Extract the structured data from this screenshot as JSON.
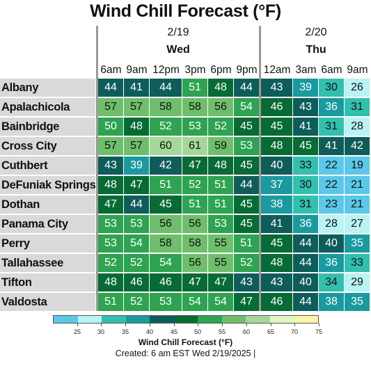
{
  "chart_data": {
    "type": "heatmap",
    "title": "Wind Chill Forecast (°F)",
    "dates": [
      {
        "date": "2/19",
        "day": "Wed",
        "columns": 6
      },
      {
        "date": "2/20",
        "day": "Thu",
        "columns": 4
      }
    ],
    "time_labels": [
      "6am",
      "9am",
      "12pm",
      "3pm",
      "6pm",
      "9pm",
      "12am",
      "3am",
      "6am",
      "9am"
    ],
    "rows": [
      {
        "city": "Albany",
        "values": [
          44,
          41,
          44,
          51,
          48,
          44,
          43,
          39,
          30,
          26
        ]
      },
      {
        "city": "Apalachicola",
        "values": [
          57,
          57,
          58,
          58,
          56,
          54,
          46,
          43,
          36,
          31
        ]
      },
      {
        "city": "Bainbridge",
        "values": [
          50,
          48,
          52,
          53,
          52,
          45,
          45,
          41,
          31,
          28
        ]
      },
      {
        "city": "Cross City",
        "values": [
          57,
          57,
          60,
          61,
          59,
          53,
          48,
          45,
          41,
          42
        ]
      },
      {
        "city": "Cuthbert",
        "values": [
          43,
          39,
          42,
          47,
          48,
          45,
          40,
          33,
          22,
          19
        ]
      },
      {
        "city": "DeFuniak Springs",
        "values": [
          48,
          47,
          51,
          52,
          51,
          44,
          37,
          30,
          22,
          21
        ]
      },
      {
        "city": "Dothan",
        "values": [
          47,
          44,
          45,
          51,
          51,
          45,
          38,
          31,
          23,
          21
        ]
      },
      {
        "city": "Panama City",
        "values": [
          53,
          53,
          56,
          56,
          53,
          45,
          41,
          36,
          28,
          27
        ]
      },
      {
        "city": "Perry",
        "values": [
          53,
          54,
          58,
          58,
          55,
          51,
          45,
          44,
          40,
          35
        ]
      },
      {
        "city": "Tallahassee",
        "values": [
          52,
          52,
          54,
          56,
          55,
          52,
          48,
          44,
          36,
          33
        ]
      },
      {
        "city": "Tifton",
        "values": [
          48,
          46,
          46,
          47,
          47,
          43,
          43,
          40,
          34,
          29
        ]
      },
      {
        "city": "Valdosta",
        "values": [
          51,
          52,
          53,
          54,
          54,
          47,
          46,
          44,
          38,
          35
        ]
      }
    ],
    "colorbar": {
      "label": "Wind Chill Forecast (°F)",
      "ticks": [
        "25",
        "30",
        "35",
        "40",
        "45",
        "50",
        "55",
        "60",
        "65",
        "70",
        "75"
      ],
      "bins": [
        {
          "min": -100,
          "max": 25,
          "color": "#5bc8ea"
        },
        {
          "min": 25,
          "max": 30,
          "color": "#b9f3f3"
        },
        {
          "min": 30,
          "max": 35,
          "color": "#33bfae"
        },
        {
          "min": 35,
          "max": 40,
          "color": "#1a9a9e"
        },
        {
          "min": 40,
          "max": 45,
          "color": "#0e5d5a"
        },
        {
          "min": 45,
          "max": 50,
          "color": "#066b34"
        },
        {
          "min": 50,
          "max": 55,
          "color": "#2ea351"
        },
        {
          "min": 55,
          "max": 60,
          "color": "#6fbe6c"
        },
        {
          "min": 60,
          "max": 65,
          "color": "#a4d89a"
        },
        {
          "min": 65,
          "max": 70,
          "color": "#e2f7c1"
        },
        {
          "min": 70,
          "max": 75,
          "color": "#fcf4a8"
        }
      ]
    }
  },
  "footer": {
    "created": "Created: 6 am EST Wed 2/19/2025  |"
  }
}
